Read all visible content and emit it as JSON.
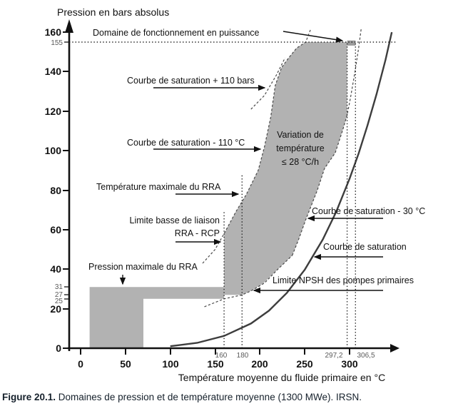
{
  "title": "Pression en bars absolus",
  "x_axis": {
    "label": "Température moyenne du fluide primaire en °C",
    "major_ticks": [
      "0",
      "50",
      "100",
      "150",
      "200",
      "250",
      "300"
    ],
    "special_ticks": [
      "160",
      "180",
      "297,2",
      "306,5"
    ]
  },
  "y_axis": {
    "major_ticks": [
      "0",
      "20",
      "40",
      "60",
      "80",
      "100",
      "120",
      "140",
      "160"
    ],
    "special_ticks": [
      "155",
      "31",
      "27",
      "25"
    ]
  },
  "annotations": {
    "power_domain": "Domaine de fonctionnement en puissance",
    "sat_plus_110": "Courbe de saturation + 110 bars",
    "sat_minus_110": "Courbe de saturation - 110 °C",
    "rra_temp_max": "Température maximale du RRA",
    "liaison_line1": "Limite basse de liaison",
    "liaison_line2": "RRA - RCP",
    "rra_pressure_max": "Pression maximale du RRA",
    "variation_line1": "Variation de",
    "variation_line2": "température",
    "variation_line3": "≤ 28 °C/h",
    "sat_minus_30": "Courbe de saturation - 30 °C",
    "saturation": "Courbe de saturation",
    "npsh": "Limite NPSH des pompes primaires"
  },
  "caption": {
    "prefix": "Figure 20.1.",
    "text": " Domaines de pression et de température moyenne (1300 MWe). IRSN."
  },
  "chart_data": {
    "type": "area",
    "title": "Domaines de pression et de température moyenne (1300 MWe)",
    "xlabel": "Température moyenne du fluide primaire en °C",
    "ylabel": "Pression en bars absolus",
    "xlim": [
      0,
      350
    ],
    "ylim": [
      0,
      160
    ],
    "x_major_ticks": [
      0,
      50,
      100,
      150,
      200,
      250,
      300
    ],
    "y_major_ticks": [
      0,
      20,
      40,
      60,
      80,
      100,
      120,
      140,
      160
    ],
    "key_values": {
      "nominal_pressure_bar": 155,
      "rra_max_pressure_bar": 31,
      "rra_rcp_connection_min_pressure_bar": 27,
      "npsh_min_pressure_bar": 25,
      "rra_max_temperature_C": 180,
      "main_domain_min_temperature_C": 160,
      "power_operation_temperature_range_C": [
        297.2,
        306.5
      ],
      "temperature_variation_limit": "≤ 28 °C/h"
    },
    "regions": {
      "rra_domain": [
        [
          10,
          0
        ],
        [
          10,
          31
        ],
        [
          160,
          31
        ],
        [
          160,
          25
        ],
        [
          70,
          25
        ],
        [
          70,
          0
        ]
      ],
      "main_domain": [
        [
          160,
          27
        ],
        [
          160,
          58
        ],
        [
          173,
          69
        ],
        [
          185,
          78
        ],
        [
          198,
          90
        ],
        [
          205,
          102
        ],
        [
          212,
          117
        ],
        [
          217,
          133
        ],
        [
          224,
          142
        ],
        [
          232,
          147
        ],
        [
          241,
          152
        ],
        [
          251,
          155
        ],
        [
          297.2,
          155
        ],
        [
          297.2,
          118
        ],
        [
          292,
          110
        ],
        [
          284,
          99
        ],
        [
          272,
          91
        ],
        [
          264,
          80
        ],
        [
          251,
          65
        ],
        [
          243,
          55
        ],
        [
          236,
          47
        ],
        [
          220,
          40
        ],
        [
          204,
          33
        ],
        [
          190,
          29
        ],
        [
          180,
          27
        ]
      ],
      "power_band": [
        [
          297.2,
          153.2
        ],
        [
          306.5,
          153.2
        ],
        [
          306.5,
          155.8
        ],
        [
          297.2,
          155.8
        ]
      ]
    },
    "curves": {
      "saturation": [
        [
          100,
          1
        ],
        [
          130,
          2.7
        ],
        [
          160,
          6.2
        ],
        [
          190,
          12.5
        ],
        [
          210,
          19
        ],
        [
          230,
          28
        ],
        [
          250,
          39.8
        ],
        [
          270,
          55
        ],
        [
          285,
          69
        ],
        [
          300,
          85.9
        ],
        [
          310,
          98.6
        ],
        [
          320,
          112.9
        ],
        [
          330,
          128.6
        ],
        [
          340,
          146
        ],
        [
          347,
          160
        ]
      ],
      "saturation_minus_30C": [
        [
          236,
          47
        ],
        [
          243,
          55
        ],
        [
          251,
          65
        ],
        [
          264,
          80
        ],
        [
          272,
          91
        ],
        [
          284,
          99
        ],
        [
          292,
          110
        ],
        [
          297.2,
          118
        ],
        [
          301,
          127
        ],
        [
          306,
          140
        ],
        [
          310,
          152
        ],
        [
          313,
          162
        ]
      ],
      "saturation_minus_110C": [
        [
          136,
          43
        ],
        [
          150,
          50
        ],
        [
          160,
          58
        ],
        [
          173,
          69
        ],
        [
          185,
          78
        ],
        [
          198,
          90
        ],
        [
          205,
          102
        ],
        [
          212,
          117
        ],
        [
          217,
          133
        ],
        [
          224,
          142
        ],
        [
          232,
          147
        ],
        [
          241,
          152
        ],
        [
          251,
          155
        ],
        [
          257,
          162
        ]
      ],
      "saturation_plus_110bars": [
        [
          190,
          121
        ],
        [
          205,
          128
        ],
        [
          218,
          138
        ],
        [
          228,
          147
        ]
      ],
      "npsh_limit": [
        [
          138,
          21
        ],
        [
          160,
          25
        ],
        [
          180,
          27
        ],
        [
          190,
          29
        ],
        [
          205,
          33
        ],
        [
          220,
          40
        ],
        [
          236,
          47
        ]
      ]
    },
    "reference_lines": {
      "horizontal_pressure": [
        155
      ],
      "vertical_temperature": [
        160,
        180,
        297.2,
        306.5
      ]
    }
  }
}
